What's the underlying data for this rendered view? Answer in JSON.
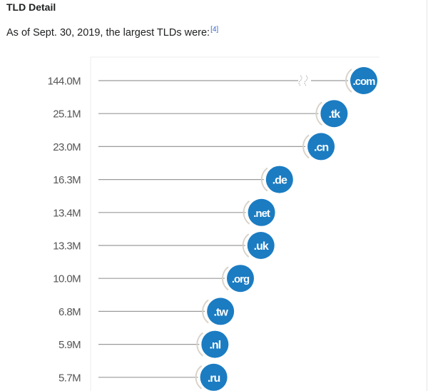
{
  "page": {
    "heading": "TLD Detail",
    "intro_text": "As of Sept. 30, 2019, the largest TLDs were:",
    "citation": "[4]"
  },
  "colors": {
    "bubble": "#1b7cc2",
    "line": "#9a9a9a",
    "label": "#555555"
  },
  "chart_data": {
    "type": "bar",
    "title": "",
    "xlabel": "",
    "ylabel": "",
    "orientation": "horizontal",
    "axis_break_on": ".com",
    "categories": [
      ".com",
      ".tk",
      ".cn",
      ".de",
      ".net",
      ".uk",
      ".org",
      ".tw",
      ".nl",
      ".ru"
    ],
    "value_labels": [
      "144.0M",
      "25.1M",
      "23.0M",
      "16.3M",
      "13.4M",
      "13.3M",
      "10.0M",
      "6.8M",
      "5.9M",
      "5.7M"
    ],
    "values": [
      144.0,
      25.1,
      23.0,
      16.3,
      13.4,
      13.3,
      10.0,
      6.8,
      5.9,
      5.7
    ],
    "units": "million domains",
    "grid": false
  }
}
